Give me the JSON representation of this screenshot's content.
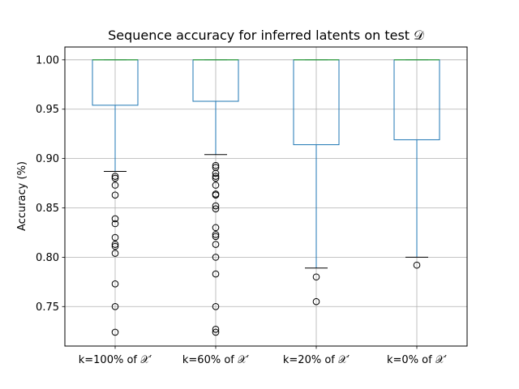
{
  "chart_data": {
    "type": "box",
    "title": "Sequence accuracy for inferred latents on test 𝒟",
    "xlabel": "",
    "ylabel": "Accuracy (%)",
    "ylim": [
      0.71,
      1.013
    ],
    "yticks": [
      "0.75",
      "0.80",
      "0.85",
      "0.90",
      "0.95",
      "1.00"
    ],
    "grid": true,
    "colors": {
      "box": "#1f77b4",
      "median": "#2ca02c",
      "grid": "#b0b0b0",
      "whisker_cap": "#000000",
      "outlier": "#000000"
    },
    "categories": [
      "k=100% of 𝒳′",
      "k=60% of 𝒳′",
      "k=20% of 𝒳′",
      "k=0% of 𝒳′"
    ],
    "boxes": [
      {
        "q1": 0.954,
        "median": 1.0,
        "q3": 1.0,
        "whisker_low": 0.887,
        "whisker_high": 1.0,
        "outliers": [
          0.882,
          0.88,
          0.873,
          0.863,
          0.839,
          0.834,
          0.82,
          0.813,
          0.811,
          0.804,
          0.773,
          0.75,
          0.724
        ]
      },
      {
        "q1": 0.958,
        "median": 1.0,
        "q3": 1.0,
        "whisker_low": 0.904,
        "whisker_high": 1.0,
        "outliers": [
          0.893,
          0.891,
          0.885,
          0.882,
          0.88,
          0.873,
          0.864,
          0.863,
          0.852,
          0.849,
          0.83,
          0.823,
          0.821,
          0.813,
          0.8,
          0.783,
          0.75,
          0.727,
          0.724
        ]
      },
      {
        "q1": 0.914,
        "median": 1.0,
        "q3": 1.0,
        "whisker_low": 0.789,
        "whisker_high": 1.0,
        "outliers": [
          0.78,
          0.755
        ]
      },
      {
        "q1": 0.919,
        "median": 1.0,
        "q3": 1.0,
        "whisker_low": 0.8,
        "whisker_high": 1.0,
        "outliers": [
          0.792
        ]
      }
    ]
  }
}
